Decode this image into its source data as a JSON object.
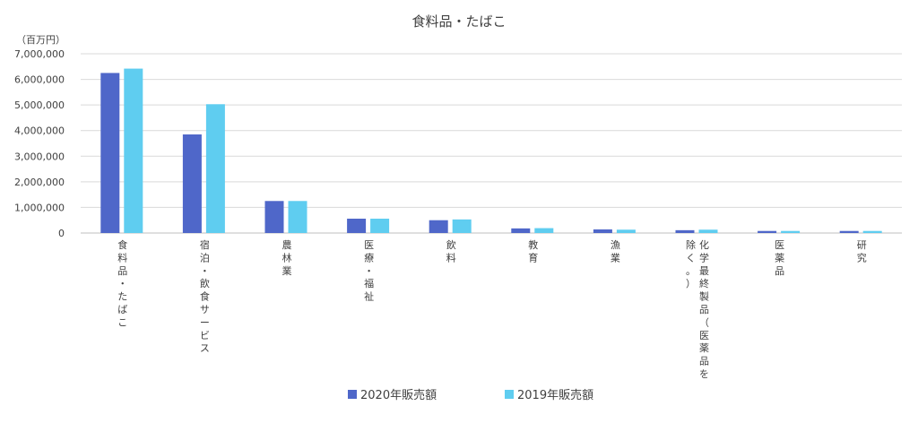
{
  "chart_data": {
    "type": "bar",
    "title": "食料品・たばこ",
    "unit_label": "（百万円）",
    "categories": [
      "食料品・たばこ",
      "宿泊・飲食サービス",
      "農林業",
      "医療・福祉",
      "飲料",
      "教育",
      "漁業",
      "化学最終製品（医薬品を除く。）",
      "医薬品",
      "研究"
    ],
    "series": [
      {
        "name": "2020年販売額",
        "color": "#4f67c9",
        "values": [
          6250000,
          3850000,
          1250000,
          560000,
          500000,
          180000,
          140000,
          110000,
          80000,
          80000
        ]
      },
      {
        "name": "2019年販売額",
        "color": "#5fcdf0",
        "values": [
          6420000,
          5030000,
          1250000,
          560000,
          530000,
          190000,
          130000,
          130000,
          80000,
          80000
        ]
      }
    ],
    "ylim": [
      0,
      7000000
    ],
    "yticks": [
      0,
      1000000,
      2000000,
      3000000,
      4000000,
      5000000,
      6000000,
      7000000
    ],
    "ytick_labels": [
      "0",
      "1,000,000",
      "2,000,000",
      "3,000,000",
      "4,000,000",
      "5,000,000",
      "6,000,000",
      "7,000,000"
    ],
    "grid": true,
    "legend_position": "bottom"
  }
}
